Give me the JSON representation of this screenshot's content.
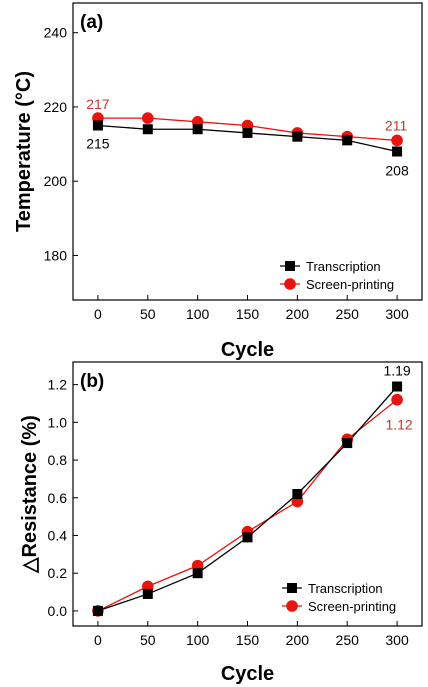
{
  "colors": {
    "transcription": "#000000",
    "screen_printing": "#e8140e",
    "annotation_red": "#c0392b"
  },
  "chart_data": [
    {
      "type": "line",
      "panel_label": "(a)",
      "xlabel": "Cycle",
      "ylabel": "Temperature (°C)",
      "x": [
        0,
        50,
        100,
        150,
        200,
        250,
        300
      ],
      "xlim": [
        -25,
        325
      ],
      "ylim": [
        168,
        248
      ],
      "xticks": [
        0,
        50,
        100,
        150,
        200,
        250,
        300
      ],
      "yticks": [
        180,
        200,
        220,
        240
      ],
      "series": [
        {
          "name": "Transcription",
          "marker": "square",
          "color": "#000000",
          "values": [
            215,
            214,
            214,
            213,
            212,
            211,
            208
          ]
        },
        {
          "name": "Screen-printing",
          "marker": "circle",
          "color": "#e8140e",
          "values": [
            217,
            217,
            216,
            215,
            213,
            212,
            211
          ]
        }
      ],
      "annotations": [
        {
          "text": "217",
          "series": "Screen-printing",
          "x": 0,
          "y": 217,
          "color": "#c0392b"
        },
        {
          "text": "215",
          "series": "Transcription",
          "x": 0,
          "y": 215,
          "color": "#000000"
        },
        {
          "text": "211",
          "series": "Screen-printing",
          "x": 300,
          "y": 211,
          "color": "#c0392b"
        },
        {
          "text": "208",
          "series": "Transcription",
          "x": 300,
          "y": 208,
          "color": "#000000"
        }
      ],
      "legend": "bottom-right",
      "grid": false
    },
    {
      "type": "line",
      "panel_label": "(b)",
      "xlabel": "Cycle",
      "ylabel": "△Resistance (%)",
      "x": [
        0,
        50,
        100,
        150,
        200,
        250,
        300
      ],
      "xlim": [
        -25,
        325
      ],
      "ylim": [
        -0.08,
        1.32
      ],
      "xticks": [
        0,
        50,
        100,
        150,
        200,
        250,
        300
      ],
      "yticks": [
        0.0,
        0.2,
        0.4,
        0.6,
        0.8,
        1.0,
        1.2
      ],
      "series": [
        {
          "name": "Transcription",
          "marker": "square",
          "color": "#000000",
          "values": [
            0.0,
            0.09,
            0.2,
            0.39,
            0.62,
            0.89,
            1.19
          ]
        },
        {
          "name": "Screen-printing",
          "marker": "circle",
          "color": "#e8140e",
          "values": [
            0.0,
            0.13,
            0.24,
            0.42,
            0.58,
            0.91,
            1.12
          ]
        }
      ],
      "annotations": [
        {
          "text": "1.19",
          "series": "Transcription",
          "x": 300,
          "y": 1.19,
          "color": "#000000"
        },
        {
          "text": "1.12",
          "series": "Screen-printing",
          "x": 300,
          "y": 1.12,
          "color": "#c0392b"
        }
      ],
      "legend": "bottom-right",
      "grid": false
    }
  ]
}
